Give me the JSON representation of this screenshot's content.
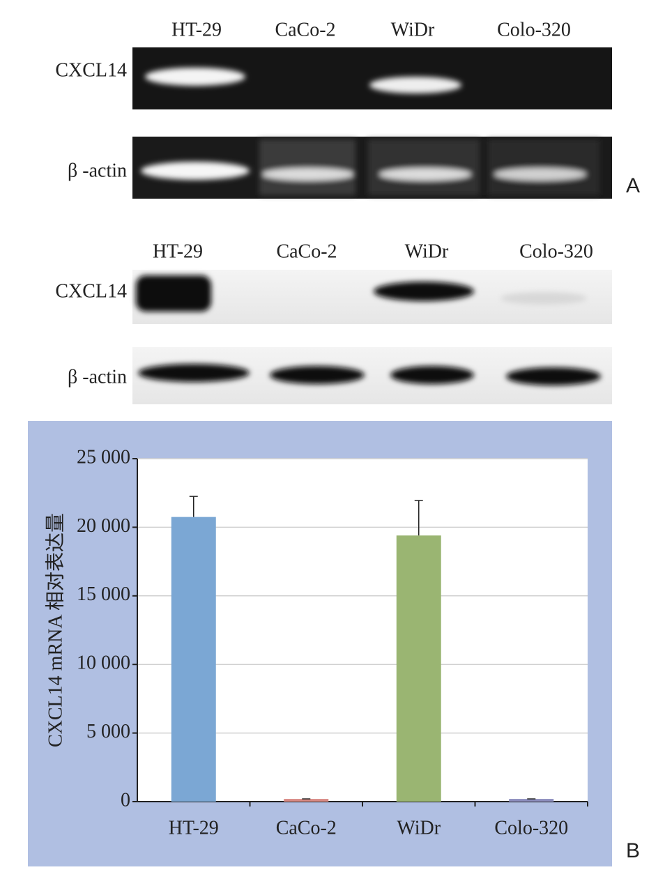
{
  "gel_a": {
    "lanes": [
      "HT-29",
      "CaCo-2",
      "WiDr",
      "Colo-320"
    ],
    "rows": [
      "CXCL14",
      "β -actin"
    ],
    "panel": "A"
  },
  "gel_b": {
    "lanes": [
      "HT-29",
      "CaCo-2",
      "WiDr",
      "Colo-320"
    ],
    "rows": [
      "CXCL14",
      "β -actin"
    ]
  },
  "chart_data": {
    "type": "bar",
    "panel": "B",
    "ylabel": "CXCL14 mRNA 相对表达量",
    "categories": [
      "HT-29",
      "CaCo-2",
      "WiDr",
      "Colo-320"
    ],
    "values": [
      20750,
      200,
      19400,
      200
    ],
    "errors": [
      1500,
      0,
      2550,
      0
    ],
    "colors": [
      "#7ba7d4",
      "#d98b86",
      "#9ab572",
      "#8e8fbf"
    ],
    "ylim": [
      0,
      25000
    ],
    "yticks": [
      0,
      {
        "value": 5000,
        "label": "5 000"
      },
      {
        "value": 10000,
        "label": "10 000"
      },
      {
        "value": 15000,
        "label": "15 000"
      },
      {
        "value": 20000,
        "label": "20 000"
      },
      {
        "value": 25000,
        "label": "25 000"
      }
    ],
    "grid": true
  }
}
